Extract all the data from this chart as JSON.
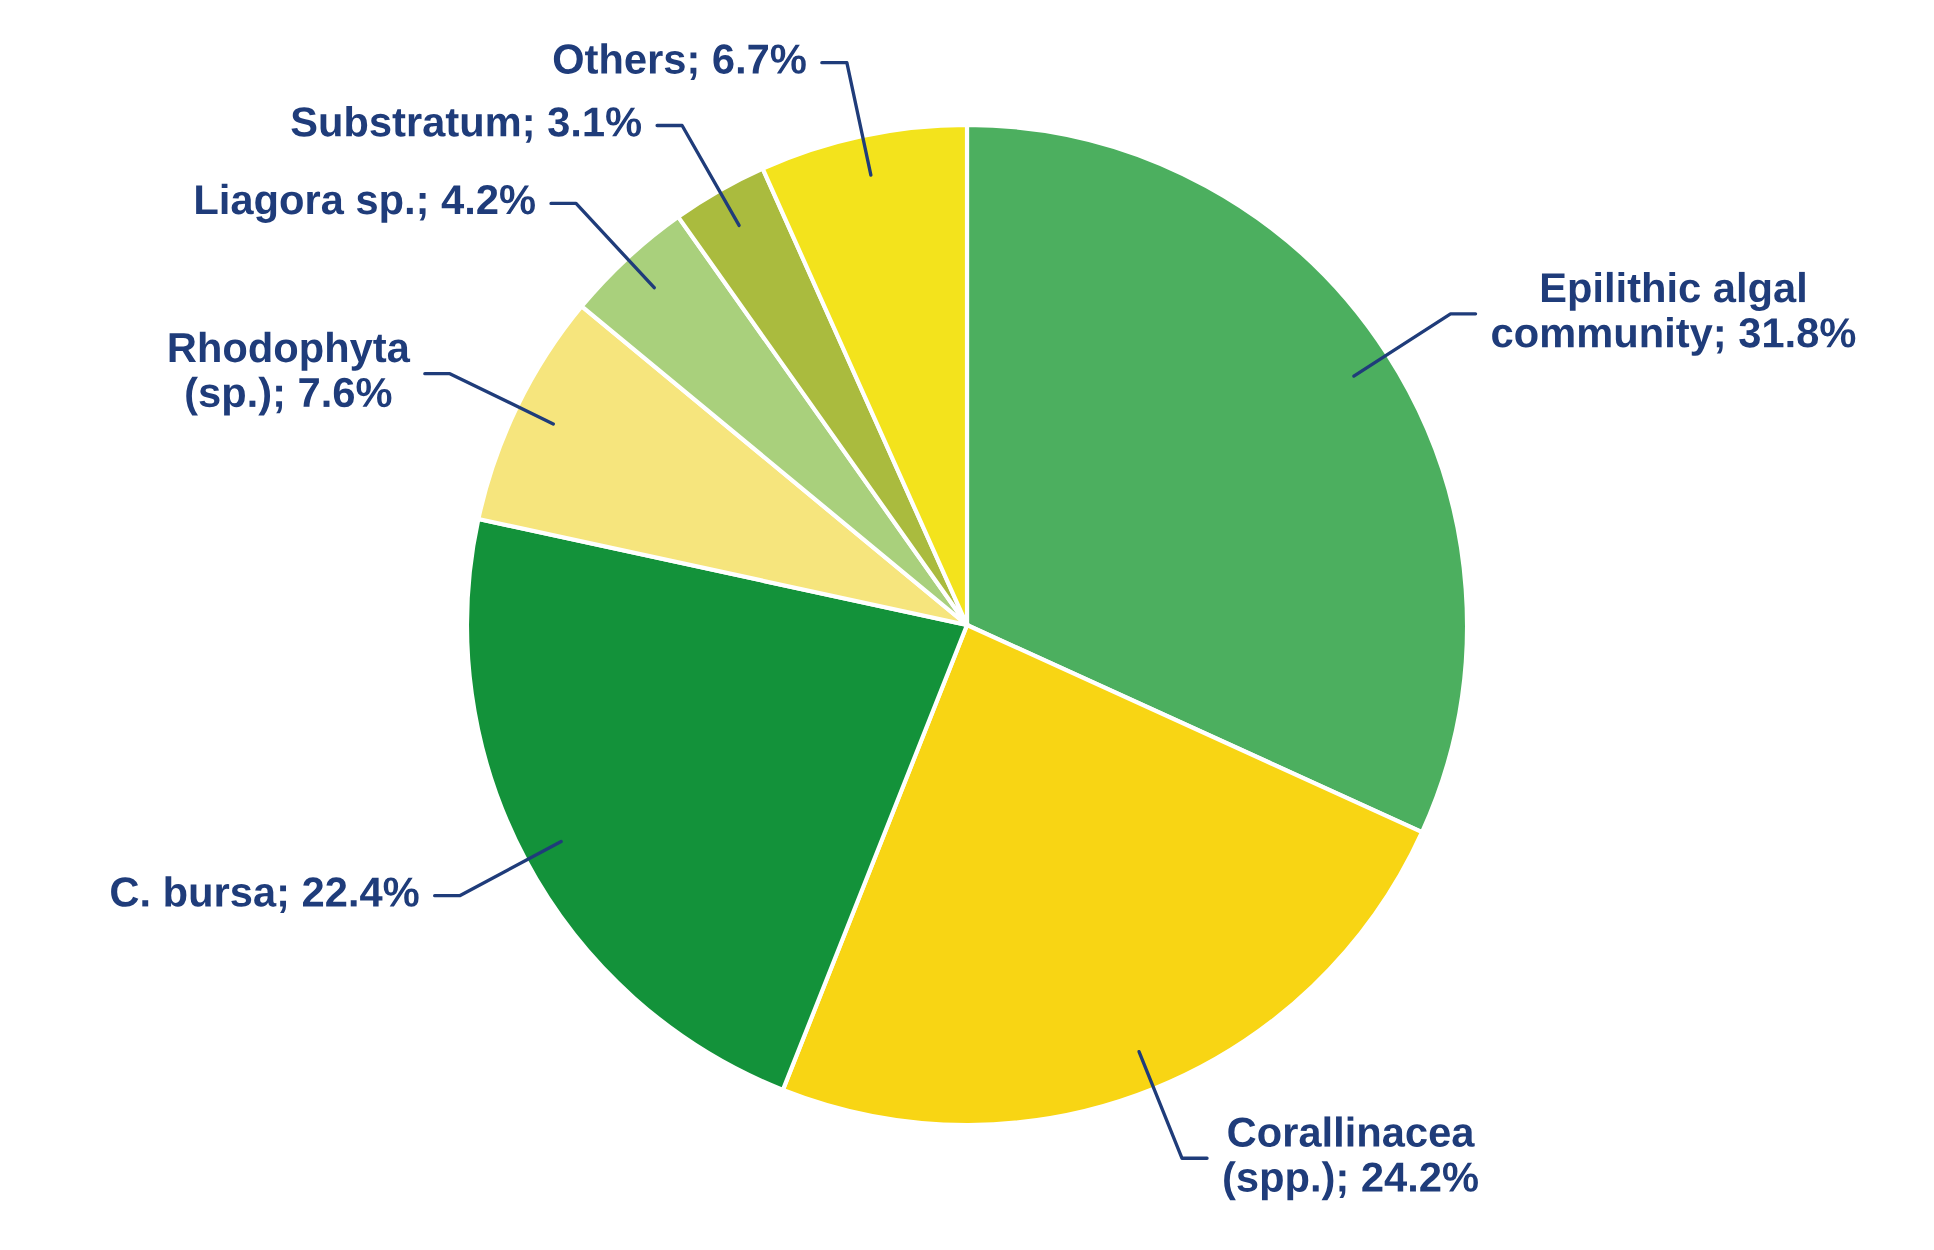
{
  "chart_data": {
    "type": "pie",
    "categories": [
      "Epilithic algal community",
      "Corallinacea (spp.)",
      "C. bursa",
      "Rhodophyta (sp.)",
      "Liagora sp.",
      "Substratum",
      "Others"
    ],
    "values": [
      31.8,
      24.2,
      22.4,
      7.6,
      4.2,
      3.1,
      6.7
    ],
    "value_labels": [
      "31.8%",
      "24.2%",
      "22.4%",
      "7.6%",
      "4.2%",
      "3.1%",
      "6.7%"
    ],
    "colors": [
      "#4caf5f",
      "#f8d514",
      "#13923a",
      "#f6e57d",
      "#a9d07c",
      "#aabb3e",
      "#f3e31c"
    ]
  }
}
